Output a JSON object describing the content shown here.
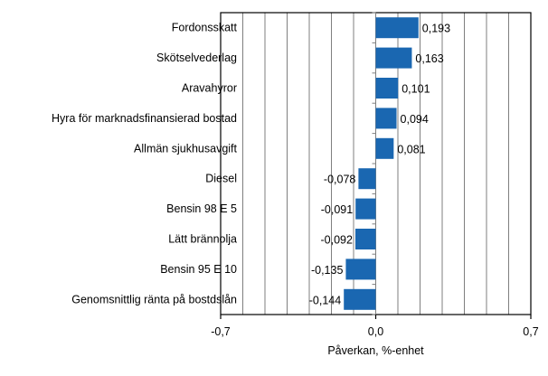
{
  "chart_data": {
    "type": "bar",
    "orientation": "horizontal",
    "categories": [
      "Fordonsskatt",
      "Skötselvederlag",
      "Aravahyror",
      "Hyra för marknadsfinansierad bostad",
      "Allmän sjukhusavgift",
      "Diesel",
      "Bensin 98 E 5",
      "Lätt brännolja",
      "Bensin 95 E 10",
      "Genomsnittlig ränta på bostdslån"
    ],
    "values": [
      0.193,
      0.163,
      0.101,
      0.094,
      0.081,
      -0.078,
      -0.091,
      -0.092,
      -0.135,
      -0.144
    ],
    "data_labels": [
      "0,193",
      "0,163",
      "0,101",
      "0,094",
      "0,081",
      "-0,078",
      "-0,091",
      "-0,092",
      "-0,135",
      "-0,144"
    ],
    "xlabel": "Påverkan, %-enhet",
    "xlim": [
      -0.7,
      0.7
    ],
    "xticks": [
      -0.7,
      0.0,
      0.7
    ],
    "xtick_labels": [
      "-0,7",
      "0,0",
      "0,7"
    ],
    "grid": "vertical, every 0.1",
    "legend": "none",
    "bar_color": "#1a67b1"
  }
}
